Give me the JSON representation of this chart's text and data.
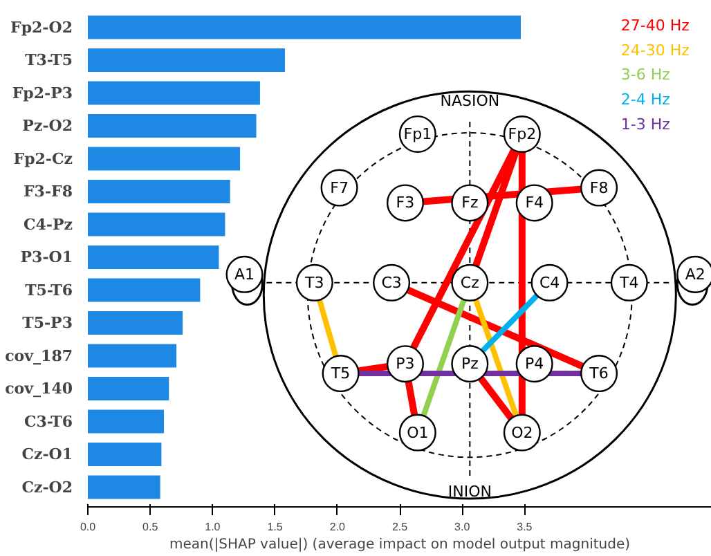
{
  "chart_data": {
    "type": "bar",
    "orientation": "horizontal",
    "xlabel": "mean(|SHAP value|) (average impact on model output magnitude)",
    "categories": [
      "Fp2-O2",
      "T3-T5",
      "Fp2-P3",
      "Pz-O2",
      "Fp2-Cz",
      "F3-F8",
      "C4-Pz",
      "P3-O1",
      "T5-T6",
      "T5-P3",
      "cov_187",
      "cov_140",
      "C3-T6",
      "Cz-O1",
      "Cz-O2"
    ],
    "values": [
      3.47,
      1.58,
      1.38,
      1.35,
      1.22,
      1.14,
      1.1,
      1.05,
      0.9,
      0.76,
      0.71,
      0.65,
      0.61,
      0.59,
      0.58
    ],
    "color": "#1e88e5",
    "xlim": [
      0,
      5.0
    ],
    "xticks": [
      {
        "value": 0,
        "label": "0.0"
      },
      0.5,
      {
        "value": 1,
        "label": "1.0"
      },
      1.5,
      {
        "value": 2,
        "label": "2.0"
      },
      2.5,
      {
        "value": 3,
        "label": "3.0"
      },
      3.5
    ],
    "grid": false,
    "annotations": [
      "27-40 Hz",
      "24-30 Hz",
      "3-6 Hz",
      "2-4 Hz",
      "1-3 Hz",
      "NASION",
      "INION",
      "Fp1",
      "Fp2",
      "F7",
      "F3",
      "Fz",
      "F4",
      "F8",
      "A1",
      "T3",
      "C3",
      "Cz",
      "C4",
      "T4",
      "A2",
      "T5",
      "P3",
      "Pz",
      "P4",
      "T6",
      "O1",
      "O2"
    ]
  }
}
